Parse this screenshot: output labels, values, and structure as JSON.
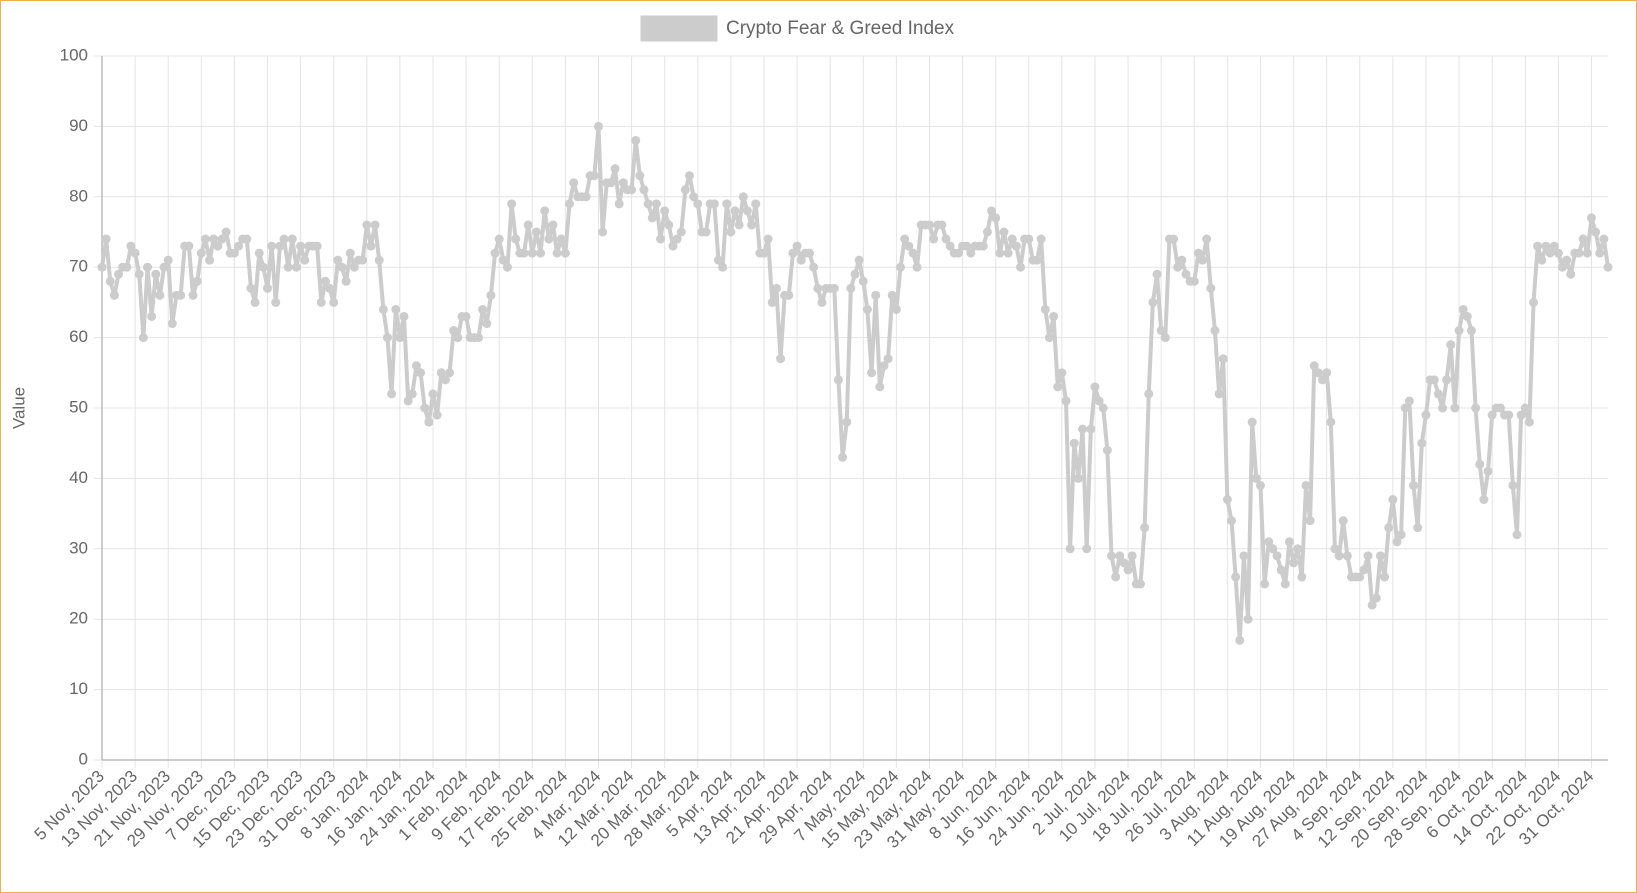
{
  "chart_data": {
    "type": "line",
    "legend": "top",
    "y_label": "Value",
    "ylim": [
      0,
      100
    ],
    "yticks": [
      0,
      10,
      20,
      30,
      40,
      50,
      60,
      70,
      80,
      90,
      100
    ],
    "grid": true,
    "categories": [
      "5 Nov, 2023",
      null,
      null,
      null,
      null,
      null,
      null,
      null,
      "13 Nov, 2023",
      null,
      null,
      null,
      null,
      null,
      null,
      null,
      "21 Nov, 2023",
      null,
      null,
      null,
      null,
      null,
      null,
      null,
      "29 Nov, 2023",
      null,
      null,
      null,
      null,
      null,
      null,
      null,
      "7 Dec, 2023",
      null,
      null,
      null,
      null,
      null,
      null,
      null,
      "15 Dec, 2023",
      null,
      null,
      null,
      null,
      null,
      null,
      null,
      "23 Dec, 2023",
      null,
      null,
      null,
      null,
      null,
      null,
      null,
      "31 Dec, 2023",
      null,
      null,
      null,
      null,
      null,
      null,
      null,
      "8 Jan, 2024",
      null,
      null,
      null,
      null,
      null,
      null,
      null,
      "16 Jan, 2024",
      null,
      null,
      null,
      null,
      null,
      null,
      null,
      "24 Jan, 2024",
      null,
      null,
      null,
      null,
      null,
      null,
      null,
      "1 Feb, 2024",
      null,
      null,
      null,
      null,
      null,
      null,
      null,
      "9 Feb, 2024",
      null,
      null,
      null,
      null,
      null,
      null,
      null,
      "17 Feb, 2024",
      null,
      null,
      null,
      null,
      null,
      null,
      null,
      "25 Feb, 2024",
      null,
      null,
      null,
      null,
      null,
      null,
      null,
      "4 Mar, 2024",
      null,
      null,
      null,
      null,
      null,
      null,
      null,
      "12 Mar, 2024",
      null,
      null,
      null,
      null,
      null,
      null,
      null,
      "20 Mar, 2024",
      null,
      null,
      null,
      null,
      null,
      null,
      null,
      "28 Mar, 2024",
      null,
      null,
      null,
      null,
      null,
      null,
      null,
      "5 Apr, 2024",
      null,
      null,
      null,
      null,
      null,
      null,
      null,
      "13 Apr, 2024",
      null,
      null,
      null,
      null,
      null,
      null,
      null,
      "21 Apr, 2024",
      null,
      null,
      null,
      null,
      null,
      null,
      null,
      "29 Apr, 2024",
      null,
      null,
      null,
      null,
      null,
      null,
      null,
      "7 May, 2024",
      null,
      null,
      null,
      null,
      null,
      null,
      null,
      "15 May, 2024",
      null,
      null,
      null,
      null,
      null,
      null,
      null,
      "23 May, 2024",
      null,
      null,
      null,
      null,
      null,
      null,
      null,
      "31 May, 2024",
      null,
      null,
      null,
      null,
      null,
      null,
      null,
      "8 Jun, 2024",
      null,
      null,
      null,
      null,
      null,
      null,
      null,
      "16 Jun, 2024",
      null,
      null,
      null,
      null,
      null,
      null,
      null,
      "24 Jun, 2024",
      null,
      null,
      null,
      null,
      null,
      null,
      null,
      "2 Jul, 2024",
      null,
      null,
      null,
      null,
      null,
      null,
      null,
      "10 Jul, 2024",
      null,
      null,
      null,
      null,
      null,
      null,
      null,
      "18 Jul, 2024",
      null,
      null,
      null,
      null,
      null,
      null,
      null,
      "26 Jul, 2024",
      null,
      null,
      null,
      null,
      null,
      null,
      null,
      "3 Aug, 2024",
      null,
      null,
      null,
      null,
      null,
      null,
      null,
      "11 Aug, 2024",
      null,
      null,
      null,
      null,
      null,
      null,
      null,
      "19 Aug, 2024",
      null,
      null,
      null,
      null,
      null,
      null,
      null,
      "27 Aug, 2024",
      null,
      null,
      null,
      null,
      null,
      null,
      null,
      "4 Sep, 2024",
      null,
      null,
      null,
      null,
      null,
      null,
      null,
      "12 Sep, 2024",
      null,
      null,
      null,
      null,
      null,
      null,
      null,
      "20 Sep, 2024",
      null,
      null,
      null,
      null,
      null,
      null,
      null,
      "28 Sep, 2024",
      null,
      null,
      null,
      null,
      null,
      null,
      null,
      "6 Oct, 2024",
      null,
      null,
      null,
      null,
      null,
      null,
      null,
      "14 Oct, 2024",
      null,
      null,
      null,
      null,
      null,
      null,
      null,
      "22 Oct, 2024",
      null,
      null,
      null,
      null,
      null,
      null,
      null,
      "31 Oct, 2024",
      null,
      null,
      null,
      null
    ],
    "series": [
      {
        "name": "Crypto Fear & Greed Index",
        "color": "#cccccc",
        "values": [
          70,
          74,
          68,
          66,
          69,
          70,
          70,
          73,
          72,
          69,
          60,
          70,
          63,
          69,
          66,
          70,
          71,
          62,
          66,
          66,
          73,
          73,
          66,
          68,
          72,
          74,
          71,
          74,
          73,
          74,
          75,
          72,
          72,
          73,
          74,
          74,
          67,
          65,
          72,
          70,
          67,
          73,
          65,
          73,
          74,
          70,
          74,
          70,
          73,
          71,
          73,
          73,
          73,
          65,
          68,
          67,
          65,
          71,
          70,
          68,
          72,
          70,
          71,
          71,
          76,
          73,
          76,
          71,
          64,
          60,
          52,
          64,
          60,
          63,
          51,
          52,
          56,
          55,
          50,
          48,
          52,
          49,
          55,
          54,
          55,
          61,
          60,
          63,
          63,
          60,
          60,
          60,
          64,
          62,
          66,
          72,
          74,
          71,
          70,
          79,
          74,
          72,
          72,
          76,
          72,
          75,
          72,
          78,
          74,
          76,
          72,
          74,
          72,
          79,
          82,
          80,
          80,
          80,
          83,
          83,
          90,
          75,
          82,
          82,
          84,
          79,
          82,
          81,
          81,
          88,
          83,
          81,
          79,
          77,
          79,
          74,
          78,
          76,
          73,
          74,
          75,
          81,
          83,
          80,
          79,
          75,
          75,
          79,
          79,
          71,
          70,
          79,
          75,
          78,
          76,
          80,
          78,
          76,
          79,
          72,
          72,
          74,
          65,
          67,
          57,
          66,
          66,
          72,
          73,
          71,
          72,
          72,
          70,
          67,
          65,
          67,
          67,
          67,
          54,
          43,
          48,
          67,
          69,
          71,
          68,
          64,
          55,
          66,
          53,
          56,
          57,
          66,
          64,
          70,
          74,
          73,
          72,
          70,
          76,
          76,
          76,
          74,
          76,
          76,
          74,
          73,
          72,
          72,
          73,
          73,
          72,
          73,
          73,
          73,
          75,
          78,
          77,
          72,
          75,
          72,
          74,
          73,
          70,
          74,
          74,
          71,
          71,
          74,
          64,
          60,
          63,
          53,
          55,
          51,
          30,
          45,
          40,
          47,
          30,
          47,
          53,
          51,
          50,
          44,
          29,
          26,
          29,
          28,
          27,
          29,
          25,
          25,
          33,
          52,
          65,
          69,
          61,
          60,
          74,
          74,
          70,
          71,
          69,
          68,
          68,
          72,
          71,
          74,
          67,
          61,
          52,
          57,
          37,
          34,
          26,
          17,
          29,
          20,
          48,
          40,
          39,
          25,
          31,
          30,
          29,
          27,
          25,
          31,
          28,
          30,
          26,
          39,
          34,
          56,
          55,
          54,
          55,
          48,
          30,
          29,
          34,
          29,
          26,
          26,
          26,
          27,
          29,
          22,
          23,
          29,
          26,
          33,
          37,
          31,
          32,
          50,
          51,
          39,
          33,
          45,
          49,
          54,
          54,
          52,
          50,
          54,
          59,
          50,
          61,
          64,
          63,
          61,
          50,
          42,
          37,
          41,
          49,
          50,
          50,
          49,
          49,
          39,
          32,
          49,
          50,
          48,
          65,
          73,
          71,
          73,
          72,
          73,
          72,
          70,
          71,
          69,
          72,
          72,
          74,
          72,
          77,
          75,
          72,
          74,
          70
        ]
      }
    ]
  }
}
